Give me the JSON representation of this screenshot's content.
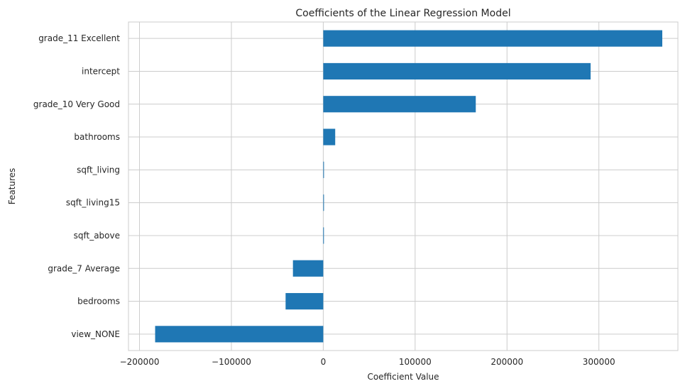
{
  "chart_data": {
    "type": "bar",
    "orientation": "horizontal",
    "title": "Coefficients of the Linear Regression Model",
    "xlabel": "Coefficient Value",
    "ylabel": "Features",
    "categories": [
      "grade_11 Excellent",
      "intercept",
      "grade_10 Very Good",
      "bathrooms",
      "sqft_living",
      "sqft_living15",
      "sqft_above",
      "grade_7 Average",
      "bedrooms",
      "view_NONE"
    ],
    "values": [
      369000,
      291000,
      166000,
      13000,
      150,
      40,
      -60,
      -33000,
      -41000,
      -183000
    ],
    "xlim": [
      -212000,
      386000
    ],
    "xticks": [
      -200000,
      -100000,
      0,
      100000,
      200000,
      300000
    ],
    "xtick_labels": [
      "−200000",
      "−100000",
      "0",
      "100000",
      "200000",
      "300000"
    ],
    "grid": true,
    "bar_color": "#1f77b4",
    "grid_color": "#cccccc",
    "background": "#ffffff"
  }
}
